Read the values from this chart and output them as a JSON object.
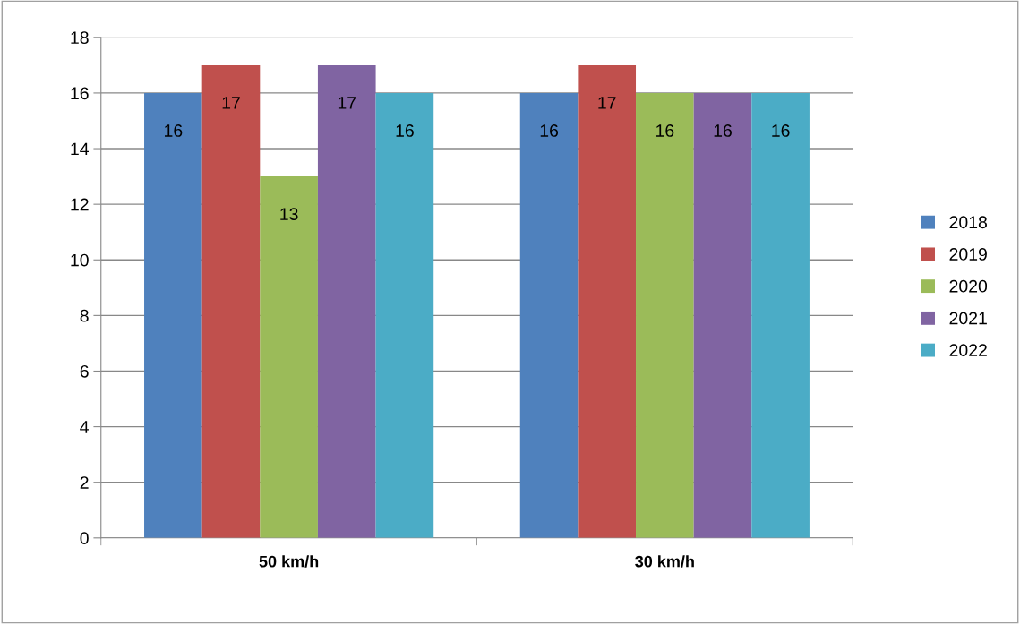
{
  "chart_data": {
    "type": "bar",
    "categories": [
      "50 km/h",
      "30 km/h"
    ],
    "series": [
      {
        "name": "2018",
        "color": "#4f81bd",
        "values": [
          16,
          16
        ]
      },
      {
        "name": "2019",
        "color": "#c0504d",
        "values": [
          17,
          17
        ]
      },
      {
        "name": "2020",
        "color": "#9bbb59",
        "values": [
          13,
          16
        ]
      },
      {
        "name": "2021",
        "color": "#8064a2",
        "values": [
          17,
          16
        ]
      },
      {
        "name": "2022",
        "color": "#4bacc6",
        "values": [
          16,
          16
        ]
      }
    ],
    "ylim": [
      0,
      18
    ],
    "yticks": [
      0,
      2,
      4,
      6,
      8,
      10,
      12,
      14,
      16,
      18
    ],
    "grid": "y",
    "legend": "right",
    "data_labels": true
  }
}
